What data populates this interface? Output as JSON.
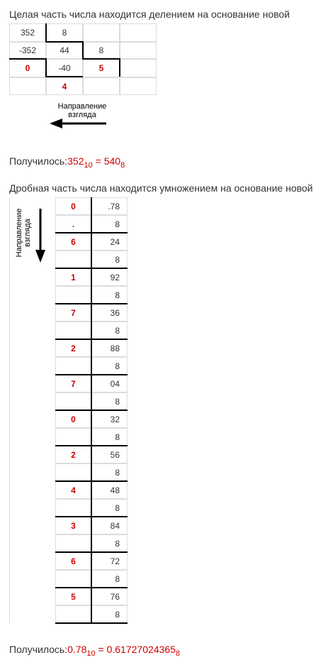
{
  "integer_section": {
    "heading": "Целая часть числа находится делением на основание новой",
    "cells": {
      "r0c0": "352",
      "r0c1": "8",
      "r0c2": "",
      "r0c3": "",
      "r1c0": "-352",
      "r1c1": "44",
      "r1c2": "8",
      "r1c3": "",
      "r2c0": "0",
      "r2c1": "-40",
      "r2c2": "5",
      "r2c3": "",
      "r3c0": "",
      "r3c1": "4",
      "r3c2": "",
      "r3c3": ""
    },
    "direction_label_line1": "Направление",
    "direction_label_line2": "взгляда",
    "result_prefix": "Получилось:",
    "result_value_left": "352",
    "result_base_left": "10",
    "result_equals": " = ",
    "result_value_right": "540",
    "result_base_right": "8"
  },
  "fraction_section": {
    "heading": "Дробная часть числа находится умножением на основание новой",
    "direction_label_line1": "Направление",
    "direction_label_line2": "взгляда",
    "rows": [
      {
        "digit": "0",
        "value": ".78"
      },
      {
        "digit": ".",
        "value": "8"
      },
      {
        "digit": "6",
        "value": "24"
      },
      {
        "digit": "",
        "value": "8"
      },
      {
        "digit": "1",
        "value": "92"
      },
      {
        "digit": "",
        "value": "8"
      },
      {
        "digit": "7",
        "value": "36"
      },
      {
        "digit": "",
        "value": "8"
      },
      {
        "digit": "2",
        "value": "88"
      },
      {
        "digit": "",
        "value": "8"
      },
      {
        "digit": "7",
        "value": "04"
      },
      {
        "digit": "",
        "value": "8"
      },
      {
        "digit": "0",
        "value": "32"
      },
      {
        "digit": "",
        "value": "8"
      },
      {
        "digit": "2",
        "value": "56"
      },
      {
        "digit": "",
        "value": "8"
      },
      {
        "digit": "4",
        "value": "48"
      },
      {
        "digit": "",
        "value": "8"
      },
      {
        "digit": "3",
        "value": "84"
      },
      {
        "digit": "",
        "value": "8"
      },
      {
        "digit": "6",
        "value": "72"
      },
      {
        "digit": "",
        "value": "8"
      },
      {
        "digit": "5",
        "value": "76"
      },
      {
        "digit": "",
        "value": "8"
      }
    ],
    "result_prefix": "Получилось:",
    "result_value_left": "0.78",
    "result_base_left": "10",
    "result_equals": " = ",
    "result_value_right": "0.61727024365",
    "result_base_right": "8"
  },
  "colors": {
    "highlight": "#cc0000",
    "text": "#333333",
    "grid": "#dcdcdc",
    "strong_line": "#000000"
  }
}
